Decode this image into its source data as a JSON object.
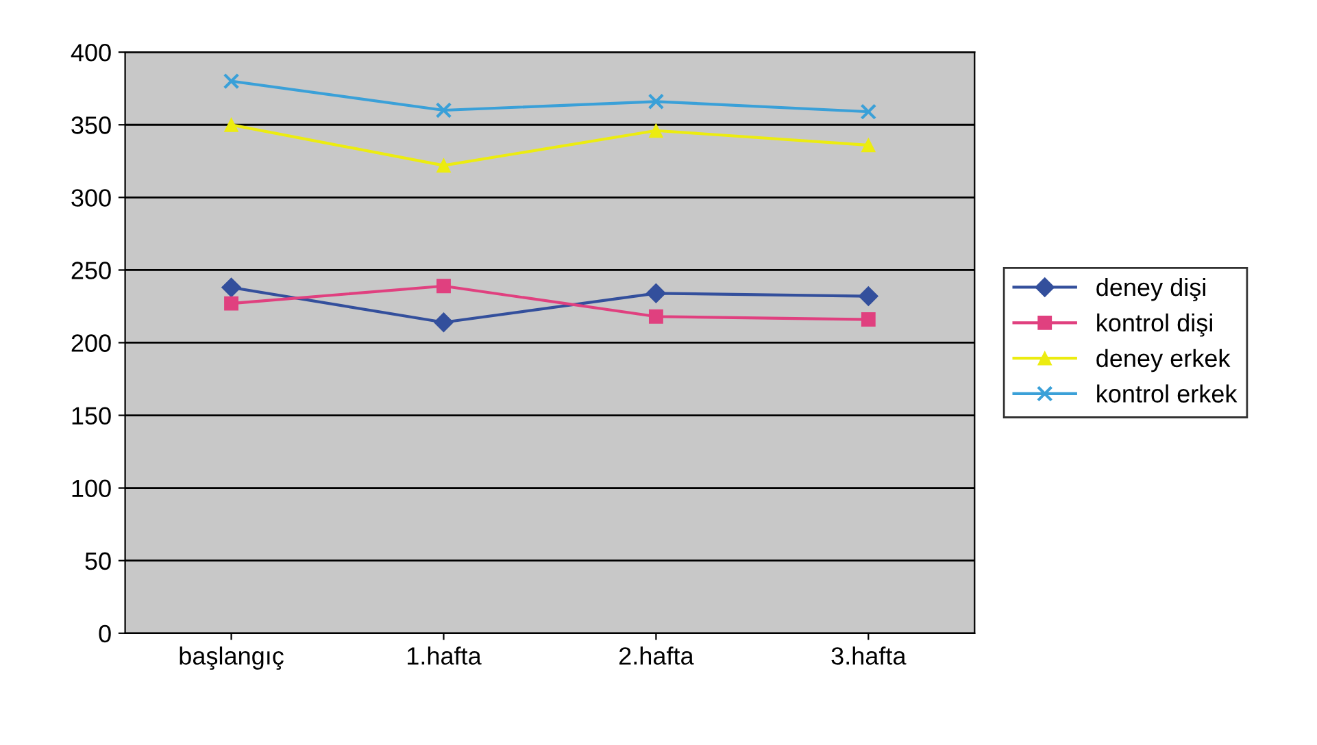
{
  "chart_data": {
    "type": "line",
    "categories": [
      "başlangıç",
      "1.hafta",
      "2.hafta",
      "3.hafta"
    ],
    "series": [
      {
        "name": "deney dişi",
        "color": "#334f9c",
        "marker": "diamond",
        "values": [
          238,
          214,
          234,
          232
        ]
      },
      {
        "name": "kontrol dişi",
        "color": "#e0407f",
        "marker": "square",
        "values": [
          227,
          239,
          218,
          216
        ]
      },
      {
        "name": "deney erkek",
        "color": "#ecec10",
        "marker": "triangle",
        "values": [
          350,
          322,
          346,
          336
        ]
      },
      {
        "name": "kontrol erkek",
        "color": "#3aa0d8",
        "marker": "cross",
        "values": [
          380,
          360,
          366,
          359
        ]
      }
    ],
    "ylim": [
      0,
      400
    ],
    "yticks": [
      0,
      50,
      100,
      150,
      200,
      250,
      300,
      350,
      400
    ],
    "grid": "y",
    "legend": "right"
  }
}
